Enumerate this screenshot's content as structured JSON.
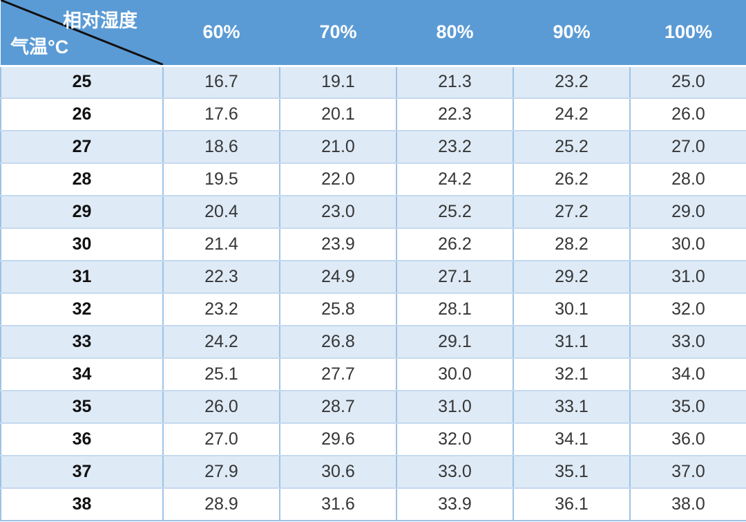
{
  "colors": {
    "header_bg": "#5B9BD5",
    "header_text": "#FFFFFF",
    "band_row_bg": "#DEEAF6",
    "plain_row_bg": "#FFFFFF",
    "grid_vertical": "#9DC3E6",
    "grid_horizontal": "#C5D9EE",
    "diagonal_line": "#111111",
    "data_text": "#363636",
    "row_label_text": "#111111"
  },
  "header": {
    "corner_top_label": "相对湿度",
    "corner_bottom_label": "气温°C",
    "columns": [
      "60%",
      "70%",
      "80%",
      "90%",
      "100%"
    ]
  },
  "rows": [
    {
      "temp": "25",
      "values": [
        "16.7",
        "19.1",
        "21.3",
        "23.2",
        "25.0"
      ]
    },
    {
      "temp": "26",
      "values": [
        "17.6",
        "20.1",
        "22.3",
        "24.2",
        "26.0"
      ]
    },
    {
      "temp": "27",
      "values": [
        "18.6",
        "21.0",
        "23.2",
        "25.2",
        "27.0"
      ]
    },
    {
      "temp": "28",
      "values": [
        "19.5",
        "22.0",
        "24.2",
        "26.2",
        "28.0"
      ]
    },
    {
      "temp": "29",
      "values": [
        "20.4",
        "23.0",
        "25.2",
        "27.2",
        "29.0"
      ]
    },
    {
      "temp": "30",
      "values": [
        "21.4",
        "23.9",
        "26.2",
        "28.2",
        "30.0"
      ]
    },
    {
      "temp": "31",
      "values": [
        "22.3",
        "24.9",
        "27.1",
        "29.2",
        "31.0"
      ]
    },
    {
      "temp": "32",
      "values": [
        "23.2",
        "25.8",
        "28.1",
        "30.1",
        "32.0"
      ]
    },
    {
      "temp": "33",
      "values": [
        "24.2",
        "26.8",
        "29.1",
        "31.1",
        "33.0"
      ]
    },
    {
      "temp": "34",
      "values": [
        "25.1",
        "27.7",
        "30.0",
        "32.1",
        "34.0"
      ]
    },
    {
      "temp": "35",
      "values": [
        "26.0",
        "28.7",
        "31.0",
        "33.1",
        "35.0"
      ]
    },
    {
      "temp": "36",
      "values": [
        "27.0",
        "29.6",
        "32.0",
        "34.1",
        "36.0"
      ]
    },
    {
      "temp": "37",
      "values": [
        "27.9",
        "30.6",
        "33.0",
        "35.1",
        "37.0"
      ]
    },
    {
      "temp": "38",
      "values": [
        "28.9",
        "31.6",
        "33.9",
        "36.1",
        "38.0"
      ]
    }
  ],
  "chart_data": {
    "type": "table",
    "title": "",
    "col_header": "相对湿度",
    "row_header": "气温°C",
    "columns": [
      "60%",
      "70%",
      "80%",
      "90%",
      "100%"
    ],
    "temperatures": [
      25,
      26,
      27,
      28,
      29,
      30,
      31,
      32,
      33,
      34,
      35,
      36,
      37,
      38
    ],
    "values": [
      [
        16.7,
        19.1,
        21.3,
        23.2,
        25.0
      ],
      [
        17.6,
        20.1,
        22.3,
        24.2,
        26.0
      ],
      [
        18.6,
        21.0,
        23.2,
        25.2,
        27.0
      ],
      [
        19.5,
        22.0,
        24.2,
        26.2,
        28.0
      ],
      [
        20.4,
        23.0,
        25.2,
        27.2,
        29.0
      ],
      [
        21.4,
        23.9,
        26.2,
        28.2,
        30.0
      ],
      [
        22.3,
        24.9,
        27.1,
        29.2,
        31.0
      ],
      [
        23.2,
        25.8,
        28.1,
        30.1,
        32.0
      ],
      [
        24.2,
        26.8,
        29.1,
        31.1,
        33.0
      ],
      [
        25.1,
        27.7,
        30.0,
        32.1,
        34.0
      ],
      [
        26.0,
        28.7,
        31.0,
        33.1,
        35.0
      ],
      [
        27.0,
        29.6,
        32.0,
        34.1,
        36.0
      ],
      [
        27.9,
        30.6,
        33.0,
        35.1,
        37.0
      ],
      [
        28.9,
        31.6,
        33.9,
        36.1,
        38.0
      ]
    ]
  }
}
